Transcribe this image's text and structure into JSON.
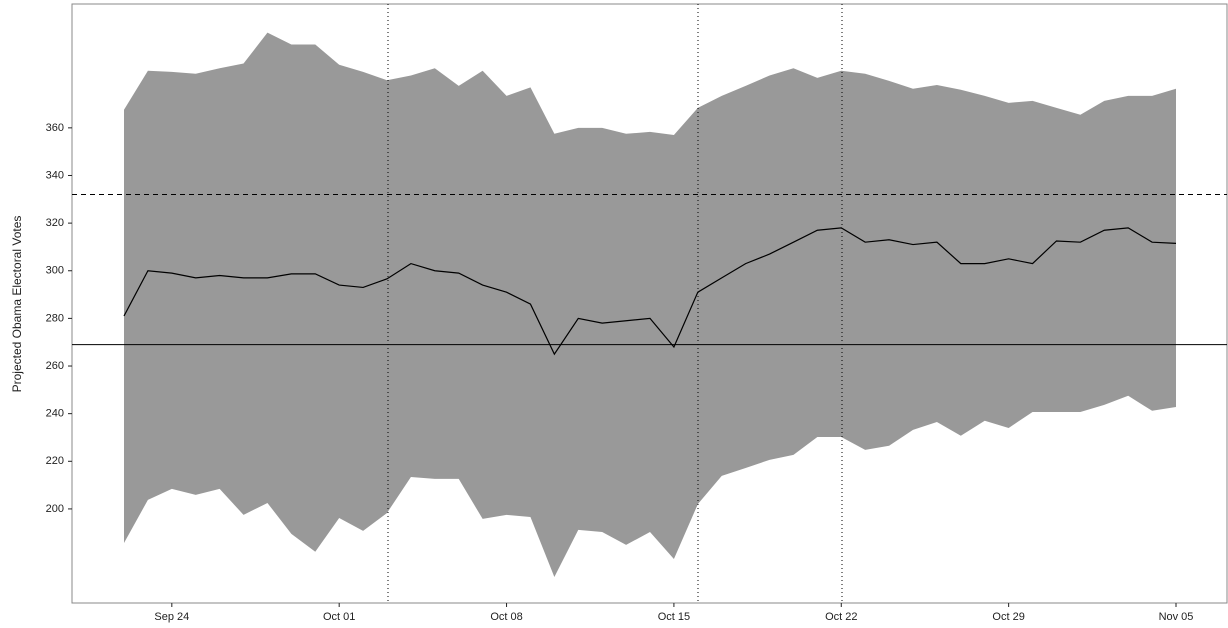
{
  "chart_data": {
    "type": "line",
    "y_label": "Projected Obama Electoral Votes",
    "categories": [
      null,
      null,
      "Sep 24",
      null,
      null,
      null,
      null,
      null,
      null,
      "Oct 01",
      null,
      null,
      null,
      null,
      null,
      null,
      "Oct 08",
      null,
      null,
      null,
      null,
      null,
      null,
      "Oct 15",
      null,
      null,
      null,
      null,
      null,
      null,
      "Oct 22",
      null,
      null,
      null,
      null,
      null,
      null,
      "Oct 29",
      null,
      null,
      null,
      null,
      null,
      null,
      "Nov 05"
    ],
    "values": [
      281,
      300,
      299,
      297,
      298,
      297,
      297,
      298.7,
      298.7,
      294,
      293,
      296.6,
      303,
      300,
      299,
      294,
      291,
      286,
      265,
      280,
      278,
      279,
      280,
      268,
      291,
      297,
      303,
      307,
      312,
      317,
      318,
      312,
      313,
      311,
      312,
      303,
      303,
      305,
      303,
      312.5,
      312,
      317,
      318,
      312,
      311.5
    ],
    "upper": [
      367.6,
      384,
      383.5,
      382.7,
      385,
      387,
      400,
      395,
      395,
      386.5,
      383.5,
      380,
      382,
      385,
      377.6,
      384,
      373.4,
      377,
      357.5,
      360,
      360,
      357.5,
      358.3,
      357,
      368.4,
      373.4,
      377.6,
      382,
      385,
      381,
      384,
      382.7,
      379.7,
      376.4,
      378,
      376,
      373.4,
      370.5,
      371.3,
      368.4,
      365.5,
      371.3,
      373.4,
      373.4,
      376.4
    ],
    "lower": [
      185.7,
      203.8,
      208.4,
      205.9,
      208.4,
      197.5,
      202.5,
      189.5,
      182,
      196.2,
      190.8,
      198.3,
      213.4,
      212.6,
      212.6,
      195.8,
      197.5,
      196.6,
      171.4,
      191.2,
      190.3,
      184.9,
      190.3,
      179,
      202,
      213.9,
      217.2,
      220.6,
      222.7,
      230.2,
      230.2,
      224.8,
      226.5,
      233.2,
      236.5,
      230.7,
      237,
      234,
      240.7,
      240.7,
      240.7,
      243.7,
      247.5,
      241.2,
      242.8
    ],
    "color": "#000000",
    "band_color": "#999999",
    "ylim": [
      160.5,
      412
    ],
    "yticks": [
      200,
      220,
      240,
      260,
      280,
      300,
      320,
      340,
      360
    ],
    "hlines": [
      {
        "value": 269,
        "dash": "solid"
      },
      {
        "value": 332,
        "dash": "dashed"
      }
    ]
  }
}
